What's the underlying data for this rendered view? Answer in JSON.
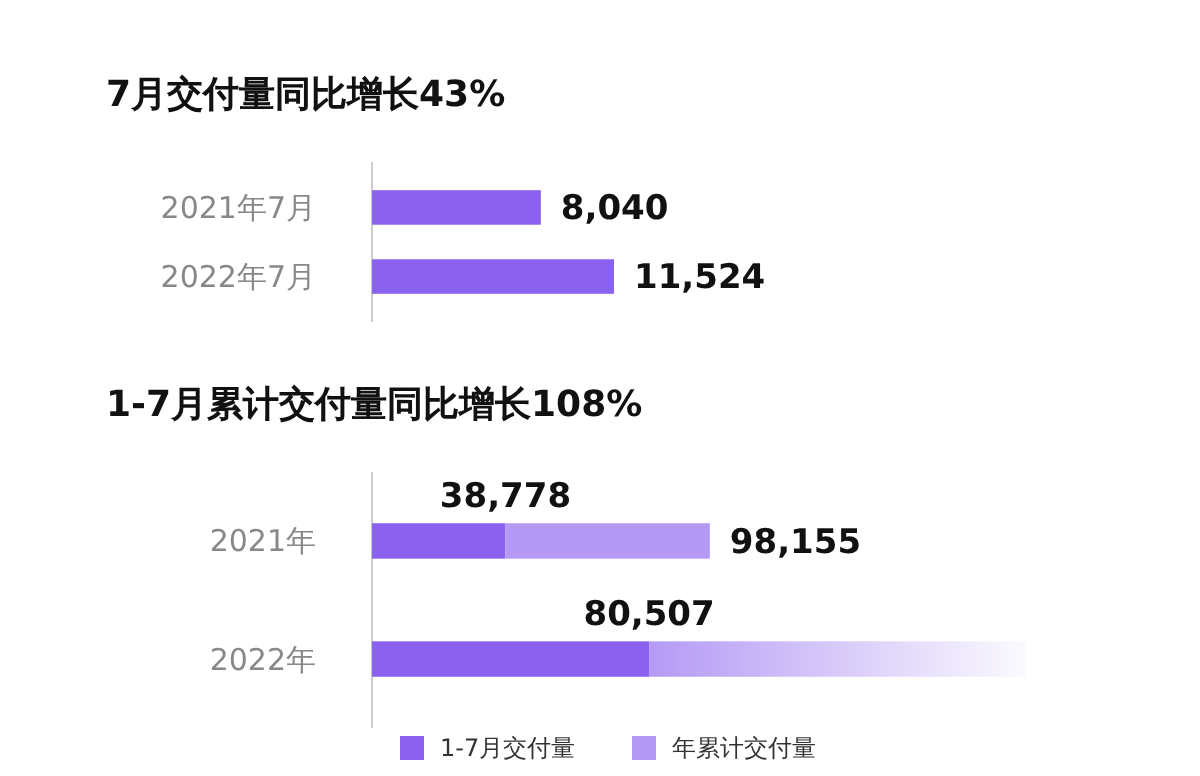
{
  "chart_data": [
    {
      "type": "bar",
      "title": "7月交付量同比增长43%",
      "orientation": "horizontal",
      "categories": [
        "2021年7月",
        "2022年7月"
      ],
      "values": [
        8040,
        11524
      ],
      "value_labels": [
        "8,040",
        "11,524"
      ],
      "color": "#8b62ee",
      "tick_labels": "y"
    },
    {
      "type": "bar",
      "title": "1-7月累计交付量同比增长108%",
      "orientation": "horizontal",
      "stacked": true,
      "categories": [
        "2021年",
        "2022年"
      ],
      "tick_labels": "y",
      "legend": "bottom",
      "series": [
        {
          "name": "1-7月交付量",
          "color": "#8b62ee",
          "values": [
            38778,
            80507
          ],
          "value_labels": [
            "38,778",
            "80,507"
          ]
        },
        {
          "name": "年累计交付量",
          "color": "#b49af5",
          "values": [
            59377,
            109500
          ]
        }
      ],
      "totals": [
        "98,155",
        null
      ]
    }
  ]
}
